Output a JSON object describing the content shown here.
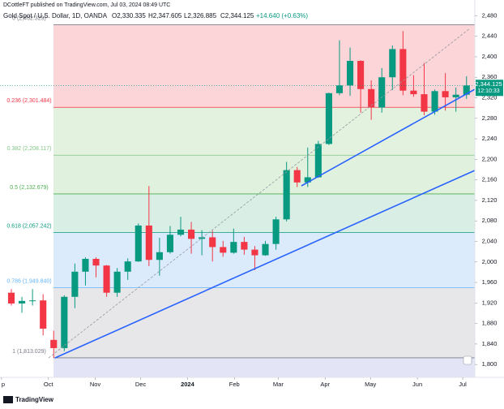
{
  "header": {
    "published": "DCottleFT published on TradingView.com, Jul 03, 2024 08:49 UTC",
    "open": "O2,330.335",
    "high": "H2,347.605",
    "low": "L2,326.885",
    "close": "C2,344.125",
    "change": "+14.640 (+0.63%)",
    "logo": "TradingView"
  },
  "chart_data": {
    "type": "candlestick",
    "title": "Gold Spot / U.S. Dollar, 1D, OANDA",
    "up_color": "#089981",
    "down_color": "#f23645",
    "x": [
      -27,
      -20,
      -13,
      -6,
      1,
      8,
      15,
      22,
      29,
      36,
      43,
      50,
      57,
      64,
      71,
      78,
      85,
      92,
      99,
      106,
      113,
      120,
      127,
      134,
      141,
      148,
      155,
      162,
      169,
      176,
      183,
      190,
      197,
      204,
      211,
      218,
      225,
      232,
      239,
      246,
      253,
      260,
      267,
      274
    ],
    "open": [
      1940,
      1919,
      1924,
      1925,
      1848,
      1832,
      1932,
      1981,
      2006,
      1993,
      1940,
      1981,
      2001,
      2071,
      2004,
      2019,
      2053,
      2063,
      2045,
      2048,
      2029,
      2018,
      2039,
      2024,
      2013,
      2035,
      2083,
      2179,
      2155,
      2165,
      2230,
      2329,
      2344,
      2392,
      2337,
      2301,
      2360,
      2415,
      2334,
      2327,
      2293,
      2333,
      2321,
      2326
    ],
    "high": [
      1947,
      1932,
      1947,
      1937,
      1866,
      1935,
      1997,
      2009,
      2009,
      1994,
      1988,
      2007,
      2075,
      2148,
      2047,
      2070,
      2088,
      2078,
      2062,
      2061,
      2041,
      2065,
      2049,
      2031,
      2041,
      2088,
      2195,
      2185,
      2223,
      2236,
      2330,
      2432,
      2418,
      2393,
      2354,
      2378,
      2422,
      2450,
      2364,
      2388,
      2336,
      2368,
      2340,
      2362
    ],
    "low": [
      1915,
      1901,
      1915,
      1857,
      1813,
      1826,
      1910,
      1954,
      1970,
      1932,
      1932,
      1965,
      2000,
      1992,
      1973,
      2016,
      2050,
      2016,
      2013,
      2001,
      2010,
      2016,
      2014,
      1984,
      2012,
      2024,
      2079,
      2146,
      2146,
      2164,
      2228,
      2325,
      2324,
      2291,
      2277,
      2291,
      2335,
      2325,
      2322,
      2286,
      2287,
      2295,
      2293,
      2318
    ],
    "close": [
      1919,
      1924,
      1925,
      1870,
      1832,
      1932,
      1981,
      2006,
      1993,
      1940,
      1981,
      2001,
      2071,
      2004,
      2019,
      2053,
      2063,
      2045,
      2048,
      2029,
      2018,
      2039,
      2024,
      2013,
      2035,
      2083,
      2179,
      2155,
      2165,
      2230,
      2329,
      2344,
      2392,
      2337,
      2301,
      2360,
      2415,
      2334,
      2327,
      2293,
      2333,
      2321,
      2326,
      2344
    ],
    "xlim": [
      -32,
      282
    ],
    "xticks": [
      {
        "value": -31,
        "label": "p"
      },
      {
        "value": 0,
        "label": "Oct"
      },
      {
        "value": 31,
        "label": "Nov"
      },
      {
        "value": 61,
        "label": "Dec"
      },
      {
        "value": 92,
        "label": "2024"
      },
      {
        "value": 123,
        "label": "Feb"
      },
      {
        "value": 152,
        "label": "Mar"
      },
      {
        "value": 183,
        "label": "Apr"
      },
      {
        "value": 213,
        "label": "May"
      },
      {
        "value": 244,
        "label": "Jun"
      },
      {
        "value": 274,
        "label": "Jul"
      }
    ],
    "ylim": [
      1775,
      2498
    ],
    "yticks": [
      {
        "value": 1800,
        "label": "1,800"
      },
      {
        "value": 1840,
        "label": "1,840"
      },
      {
        "value": 1880,
        "label": "1,880"
      },
      {
        "value": 1920,
        "label": "1,920"
      },
      {
        "value": 1960,
        "label": "1,960"
      },
      {
        "value": 2000,
        "label": "2,000"
      },
      {
        "value": 2040,
        "label": "2,040"
      },
      {
        "value": 2080,
        "label": "2,080"
      },
      {
        "value": 2120,
        "label": "2,120"
      },
      {
        "value": 2160,
        "label": "2,160"
      },
      {
        "value": 2200,
        "label": "2,200"
      },
      {
        "value": 2240,
        "label": "2,240"
      },
      {
        "value": 2280,
        "label": "2,280"
      },
      {
        "value": 2320,
        "label": "2,320"
      },
      {
        "value": 2360,
        "label": "2,360"
      },
      {
        "value": 2400,
        "label": "2,400"
      },
      {
        "value": 2440,
        "label": "2,440"
      },
      {
        "value": 2480,
        "label": "2,480"
      }
    ],
    "grid": false,
    "last_price": {
      "value": 2344.125,
      "label": "2,344.125",
      "countdown": "12:10:33",
      "color": "#089981"
    },
    "fib": {
      "below_color": "#e3e5f7",
      "levels": [
        {
          "value": 2462.329,
          "label": "0 (2,462.329)",
          "color": "#787b86",
          "zone_color": "#fbd5d8"
        },
        {
          "value": 2301.484,
          "label": "0.236 (2,301.484)",
          "color": "#f23645",
          "zone_color": "#e3f2df"
        },
        {
          "value": 2208.117,
          "label": "0.382 (2,208.117)",
          "color": "#81c784",
          "zone_color": "#e0f1de"
        },
        {
          "value": 2132.679,
          "label": "0.5 (2,132.679)",
          "color": "#4caf50",
          "zone_color": "#d9efe6"
        },
        {
          "value": 2057.242,
          "label": "0.618 (2,057.242)",
          "color": "#089981",
          "zone_color": "#dcebfb"
        },
        {
          "value": 1949.84,
          "label": "0.786 (1,949.840)",
          "color": "#64b5f6",
          "zone_color": "#e7e7e9"
        },
        {
          "value": 1813.029,
          "label": "1 (1,813.029)",
          "color": "#787b86",
          "zone_color": "#e7e7e9"
        }
      ]
    }
  }
}
